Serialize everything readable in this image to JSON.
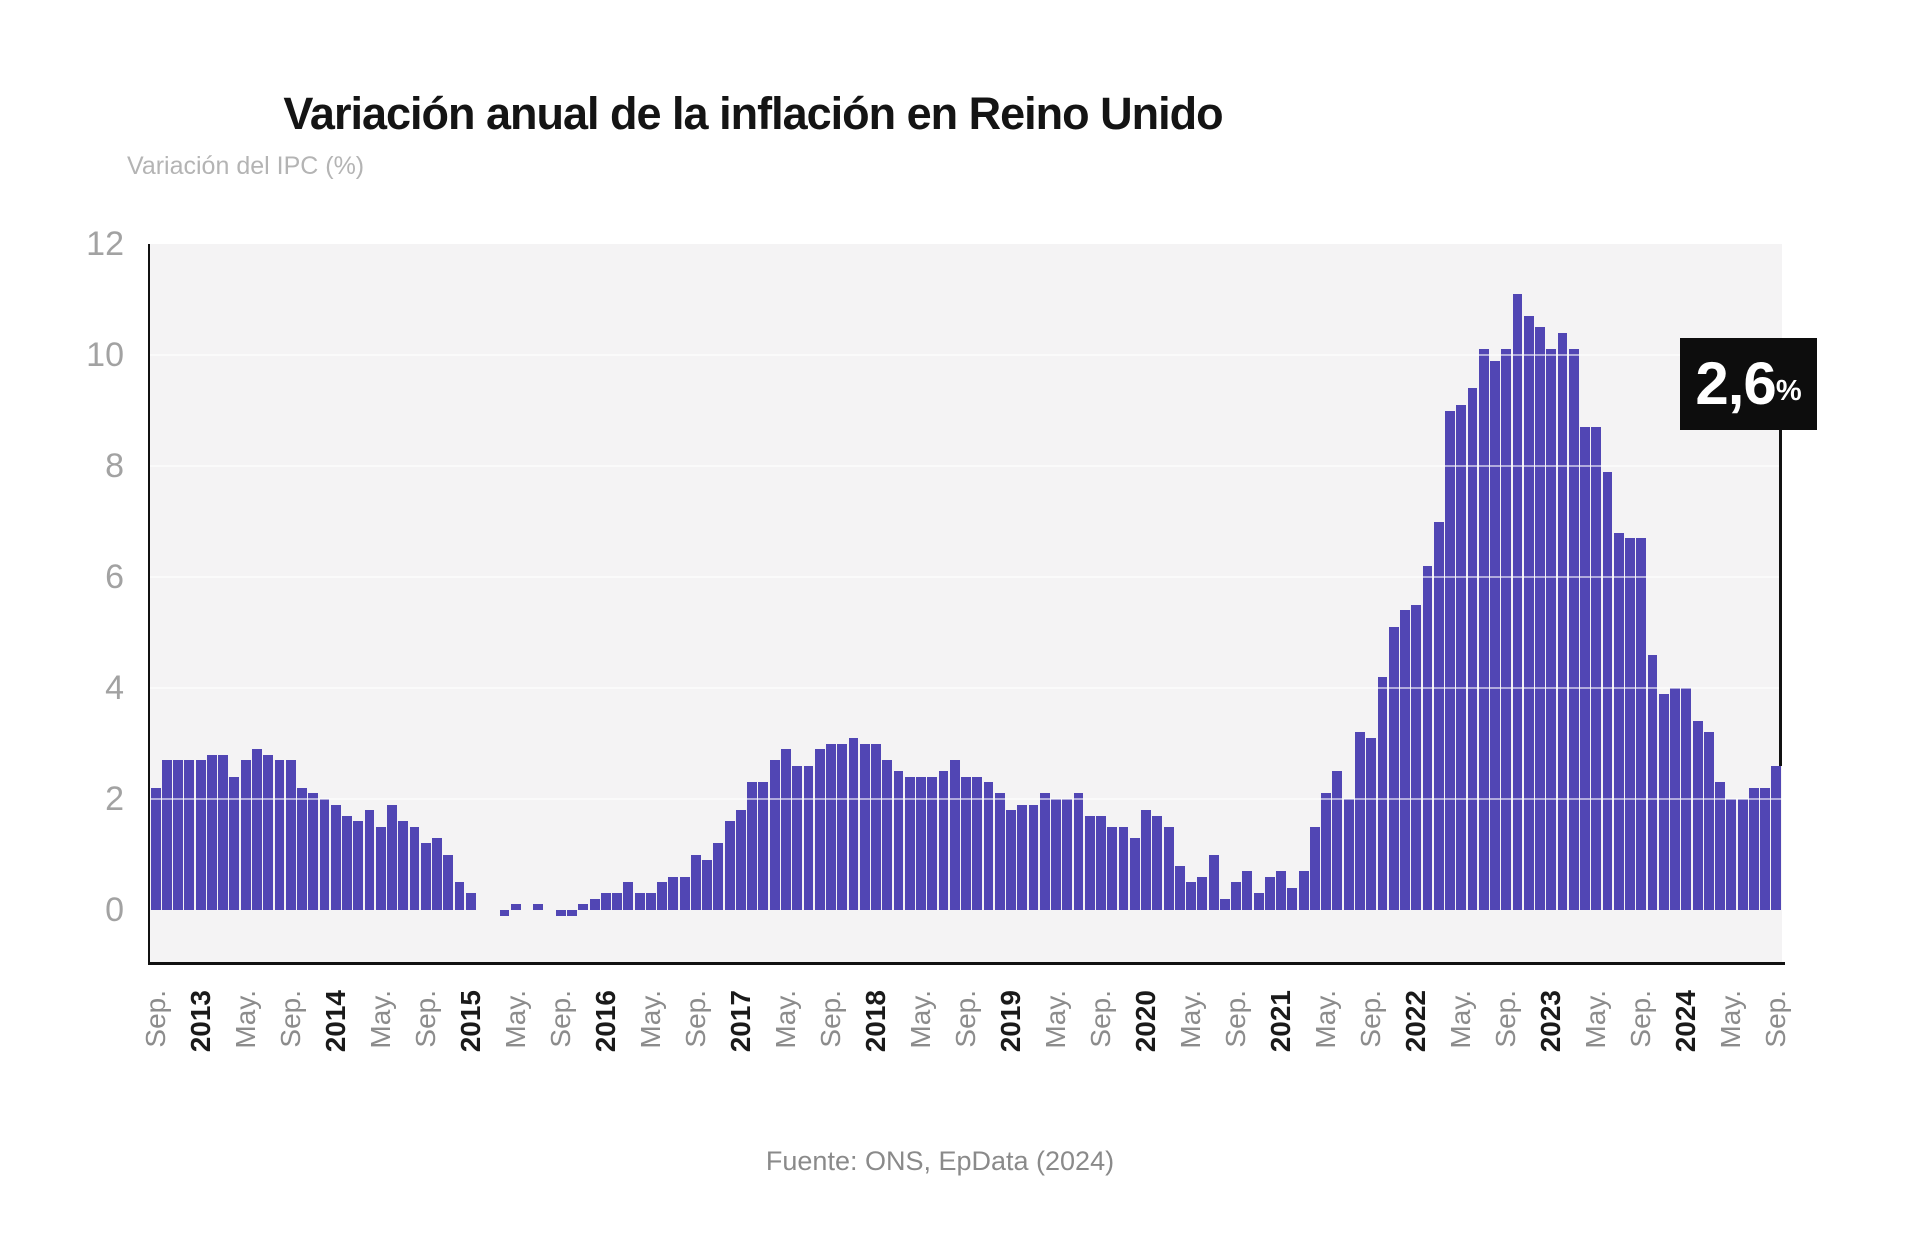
{
  "page": {
    "title": "Variación anual de la inflación en Reino Unido",
    "source": "Fuente: ONS, EpData (2024)"
  },
  "chart_data": {
    "type": "bar",
    "title": "Variación anual de la inflación en Reino Unido",
    "ylabel": "Variación del IPC (%)",
    "source": "Fuente: ONS, EpData (2024)",
    "legend": "none",
    "grid": "horizontal white lines at even values",
    "y_axis": {
      "min": -1,
      "max": 12,
      "ticks": [
        0,
        2,
        4,
        6,
        8,
        10,
        12
      ],
      "gridlines": [
        2,
        4,
        6,
        8,
        10
      ]
    },
    "x_axis": {
      "start": "Sep 2012",
      "end": "Sep 2024",
      "tick_every_months": 4,
      "tick_labels": [
        {
          "label": "Sep.",
          "bold": false
        },
        {
          "label": "2013",
          "bold": true
        },
        {
          "label": "May.",
          "bold": false
        },
        {
          "label": "Sep.",
          "bold": false
        },
        {
          "label": "2014",
          "bold": true
        },
        {
          "label": "May.",
          "bold": false
        },
        {
          "label": "Sep.",
          "bold": false
        },
        {
          "label": "2015",
          "bold": true
        },
        {
          "label": "May.",
          "bold": false
        },
        {
          "label": "Sep.",
          "bold": false
        },
        {
          "label": "2016",
          "bold": true
        },
        {
          "label": "May.",
          "bold": false
        },
        {
          "label": "Sep.",
          "bold": false
        },
        {
          "label": "2017",
          "bold": true
        },
        {
          "label": "May.",
          "bold": false
        },
        {
          "label": "Sep.",
          "bold": false
        },
        {
          "label": "2018",
          "bold": true
        },
        {
          "label": "May.",
          "bold": false
        },
        {
          "label": "Sep.",
          "bold": false
        },
        {
          "label": "2019",
          "bold": true
        },
        {
          "label": "May.",
          "bold": false
        },
        {
          "label": "Sep.",
          "bold": false
        },
        {
          "label": "2020",
          "bold": true
        },
        {
          "label": "May.",
          "bold": false
        },
        {
          "label": "Sep.",
          "bold": false
        },
        {
          "label": "2021",
          "bold": true
        },
        {
          "label": "May.",
          "bold": false
        },
        {
          "label": "Sep.",
          "bold": false
        },
        {
          "label": "2022",
          "bold": true
        },
        {
          "label": "May.",
          "bold": false
        },
        {
          "label": "Sep.",
          "bold": false
        },
        {
          "label": "2023",
          "bold": true
        },
        {
          "label": "May.",
          "bold": false
        },
        {
          "label": "Sep.",
          "bold": false
        },
        {
          "label": "2024",
          "bold": true
        },
        {
          "label": "May.",
          "bold": false
        },
        {
          "label": "Sep.",
          "bold": false
        }
      ]
    },
    "series": [
      {
        "name": "Variación del IPC (%)",
        "start_month": "2012-09",
        "values": [
          2.2,
          2.7,
          2.7,
          2.7,
          2.7,
          2.8,
          2.8,
          2.4,
          2.7,
          2.9,
          2.8,
          2.7,
          2.7,
          2.2,
          2.1,
          2.0,
          1.9,
          1.7,
          1.6,
          1.8,
          1.5,
          1.9,
          1.6,
          1.5,
          1.2,
          1.3,
          1.0,
          0.5,
          0.3,
          0.0,
          0.0,
          -0.1,
          0.1,
          0.0,
          0.1,
          0.0,
          -0.1,
          -0.1,
          0.1,
          0.2,
          0.3,
          0.3,
          0.5,
          0.3,
          0.3,
          0.5,
          0.6,
          0.6,
          1.0,
          0.9,
          1.2,
          1.6,
          1.8,
          2.3,
          2.3,
          2.7,
          2.9,
          2.6,
          2.6,
          2.9,
          3.0,
          3.0,
          3.1,
          3.0,
          3.0,
          2.7,
          2.5,
          2.4,
          2.4,
          2.4,
          2.5,
          2.7,
          2.4,
          2.4,
          2.3,
          2.1,
          1.8,
          1.9,
          1.9,
          2.1,
          2.0,
          2.0,
          2.1,
          1.7,
          1.7,
          1.5,
          1.5,
          1.3,
          1.8,
          1.7,
          1.5,
          0.8,
          0.5,
          0.6,
          1.0,
          0.2,
          0.5,
          0.7,
          0.3,
          0.6,
          0.7,
          0.4,
          0.7,
          1.5,
          2.1,
          2.5,
          2.0,
          3.2,
          3.1,
          4.2,
          5.1,
          5.4,
          5.5,
          6.2,
          7.0,
          9.0,
          9.1,
          9.4,
          10.1,
          9.9,
          10.1,
          11.1,
          10.7,
          10.5,
          10.1,
          10.4,
          10.1,
          8.7,
          8.7,
          7.9,
          6.8,
          6.7,
          6.7,
          4.6,
          3.9,
          4.0,
          4.0,
          3.4,
          3.2,
          2.3,
          2.0,
          2.0,
          2.2,
          2.2,
          2.6
        ]
      }
    ],
    "callout": {
      "value": "2,6",
      "unit": "%"
    },
    "colors": {
      "bar": "#5146b4",
      "plot_bg": "#f4f3f4",
      "callout_bg": "#0d0d0d",
      "title": "#141414",
      "ylabel_note": "#b4b4b4",
      "y_tick": "#a2a2a2",
      "month_tick": "#8c8c8c",
      "year_tick": "#1a1a1a",
      "source": "#8a8a8a",
      "axis_line": "#111111"
    }
  }
}
